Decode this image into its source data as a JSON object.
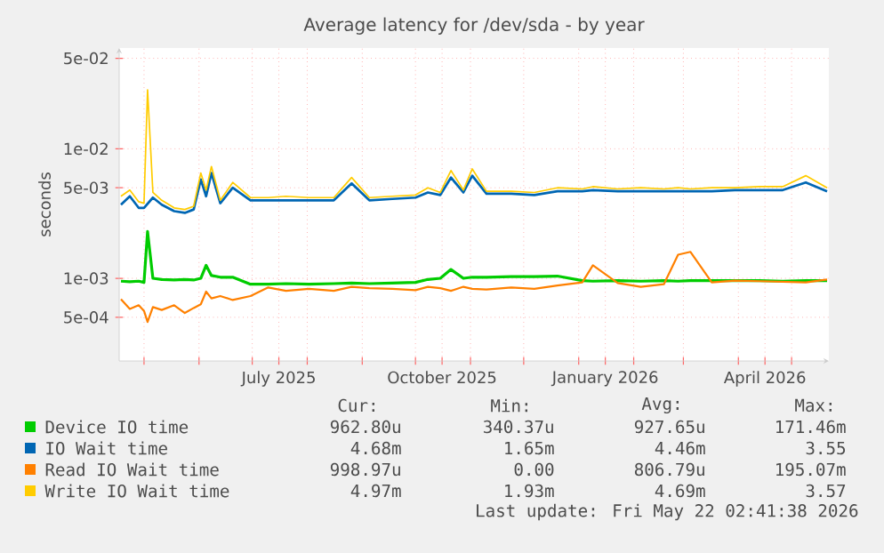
{
  "chart_data": {
    "type": "line",
    "title": "Average latency for /dev/sda - by year",
    "ylabel": "seconds",
    "x": [
      "2025-04-18",
      "2025-04-23",
      "2025-04-28",
      "2025-05-01",
      "2025-05-03",
      "2025-05-06",
      "2025-05-11",
      "2025-05-18",
      "2025-05-24",
      "2025-05-29",
      "2025-06-02",
      "2025-06-05",
      "2025-06-08",
      "2025-06-13",
      "2025-06-20",
      "2025-06-30",
      "2025-07-10",
      "2025-07-20",
      "2025-08-02",
      "2025-08-16",
      "2025-08-26",
      "2025-09-05",
      "2025-09-18",
      "2025-10-01",
      "2025-10-08",
      "2025-10-15",
      "2025-10-21",
      "2025-10-28",
      "2025-11-02",
      "2025-11-10",
      "2025-11-24",
      "2025-12-07",
      "2025-12-20",
      "2026-01-03",
      "2026-01-09",
      "2026-01-23",
      "2026-02-05",
      "2026-02-18",
      "2026-02-26",
      "2026-03-05",
      "2026-03-17",
      "2026-03-30",
      "2026-04-13",
      "2026-04-26",
      "2026-05-09",
      "2026-05-21"
    ],
    "series": [
      {
        "name": "Device IO time",
        "color": "#00cc00",
        "values": [
          0.00095,
          0.00094,
          0.00095,
          0.00093,
          0.0023,
          0.001,
          0.00098,
          0.00097,
          0.00098,
          0.00097,
          0.001,
          0.00126,
          0.00105,
          0.00102,
          0.00102,
          0.0009,
          0.0009,
          0.00091,
          0.0009,
          0.00091,
          0.00092,
          0.00091,
          0.00092,
          0.00093,
          0.00098,
          0.001,
          0.00117,
          0.001,
          0.00102,
          0.00102,
          0.00103,
          0.00103,
          0.00104,
          0.00096,
          0.00095,
          0.00096,
          0.00095,
          0.00096,
          0.00095,
          0.00096,
          0.00096,
          0.00096,
          0.00096,
          0.00095,
          0.00096,
          0.00096
        ]
      },
      {
        "name": "IO Wait time",
        "color": "#0066b3",
        "values": [
          0.0037,
          0.0043,
          0.0035,
          0.0035,
          null,
          0.0042,
          0.0037,
          0.0033,
          0.0032,
          0.0034,
          0.0058,
          0.0043,
          0.0065,
          0.0038,
          0.005,
          0.004,
          0.004,
          0.004,
          0.004,
          0.004,
          0.0054,
          0.004,
          0.0041,
          0.0042,
          0.0046,
          0.0044,
          0.006,
          0.0046,
          0.0062,
          0.0045,
          0.0045,
          0.0044,
          0.0047,
          0.0047,
          0.0048,
          0.0047,
          0.0047,
          0.0047,
          0.0047,
          0.0047,
          0.0047,
          0.0048,
          0.0048,
          0.0048,
          0.0055,
          0.0047
        ]
      },
      {
        "name": "Read IO Wait time",
        "color": "#ff8000",
        "values": [
          0.00069,
          0.00058,
          0.00062,
          0.00056,
          0.00046,
          0.0006,
          0.00057,
          0.00062,
          0.00054,
          0.00059,
          0.00063,
          0.00079,
          0.0007,
          0.00073,
          0.00068,
          0.00073,
          0.00085,
          0.0008,
          0.00083,
          0.0008,
          0.00086,
          0.00084,
          0.00083,
          0.00081,
          0.00086,
          0.00084,
          0.0008,
          0.00086,
          0.00083,
          0.00082,
          0.00085,
          0.00083,
          0.00088,
          0.00093,
          0.00126,
          0.00092,
          0.00086,
          0.0009,
          0.00152,
          0.0016,
          0.00093,
          0.00096,
          0.00095,
          0.00094,
          0.00093,
          0.00098
        ]
      },
      {
        "name": "Write IO Wait time",
        "color": "#ffcc00",
        "values": [
          0.0043,
          0.0048,
          0.0039,
          0.0038,
          0.0285,
          0.0046,
          0.004,
          0.0035,
          0.0034,
          0.0036,
          0.0065,
          0.0048,
          0.0073,
          0.004,
          0.0055,
          0.0042,
          0.0042,
          0.0043,
          0.0042,
          0.0042,
          0.006,
          0.0042,
          0.0043,
          0.0044,
          0.005,
          0.0046,
          0.0068,
          0.0048,
          0.007,
          0.0047,
          0.0047,
          0.0046,
          0.005,
          0.0049,
          0.0051,
          0.0049,
          0.005,
          0.0049,
          0.005,
          0.0049,
          0.005,
          0.005,
          0.0051,
          0.0051,
          0.0062,
          0.005
        ]
      }
    ],
    "xlim": [
      "2025-04-17",
      "2026-05-22"
    ],
    "xticks": [
      {
        "value": "2025-05-01",
        "label": null
      },
      {
        "value": "2025-06-01",
        "label": null
      },
      {
        "value": "2025-07-01",
        "label": null
      },
      {
        "value": "2025-07-16",
        "label": "July 2025"
      },
      {
        "value": "2025-08-01",
        "label": null
      },
      {
        "value": "2025-09-01",
        "label": null
      },
      {
        "value": "2025-10-01",
        "label": null
      },
      {
        "value": "2025-10-16",
        "label": "October 2025"
      },
      {
        "value": "2025-11-01",
        "label": null
      },
      {
        "value": "2025-12-01",
        "label": null
      },
      {
        "value": "2026-01-01",
        "label": null
      },
      {
        "value": "2026-01-16",
        "label": "January 2026"
      },
      {
        "value": "2026-02-01",
        "label": null
      },
      {
        "value": "2026-03-01",
        "label": null
      },
      {
        "value": "2026-04-01",
        "label": null
      },
      {
        "value": "2026-04-16",
        "label": "April 2026"
      },
      {
        "value": "2026-05-01",
        "label": null
      }
    ],
    "ylim": [
      0.00023,
      0.06
    ],
    "yticks": [
      {
        "value": 0.0005,
        "label": "5e-04"
      },
      {
        "value": 0.001,
        "label": "1e-03"
      },
      {
        "value": 0.005,
        "label": "5e-03"
      },
      {
        "value": 0.01,
        "label": "1e-02"
      },
      {
        "value": 0.05,
        "label": "5e-02"
      }
    ],
    "log": "y",
    "grid": true,
    "legend": "bottom",
    "marker": "none",
    "line_style": "solid",
    "annotations": [
      "Cur:",
      "Min:",
      "Avg:",
      "Max:",
      "962.80u",
      "340.37u",
      "927.65u",
      "171.46m",
      "4.68m",
      "1.65m",
      "4.46m",
      "3.55",
      "998.97u",
      "0.00",
      "806.79u",
      "195.07m",
      "4.97m",
      "1.93m",
      "4.69m",
      "3.57",
      "Last update: Fri May 22 02:41:38 2026"
    ]
  }
}
